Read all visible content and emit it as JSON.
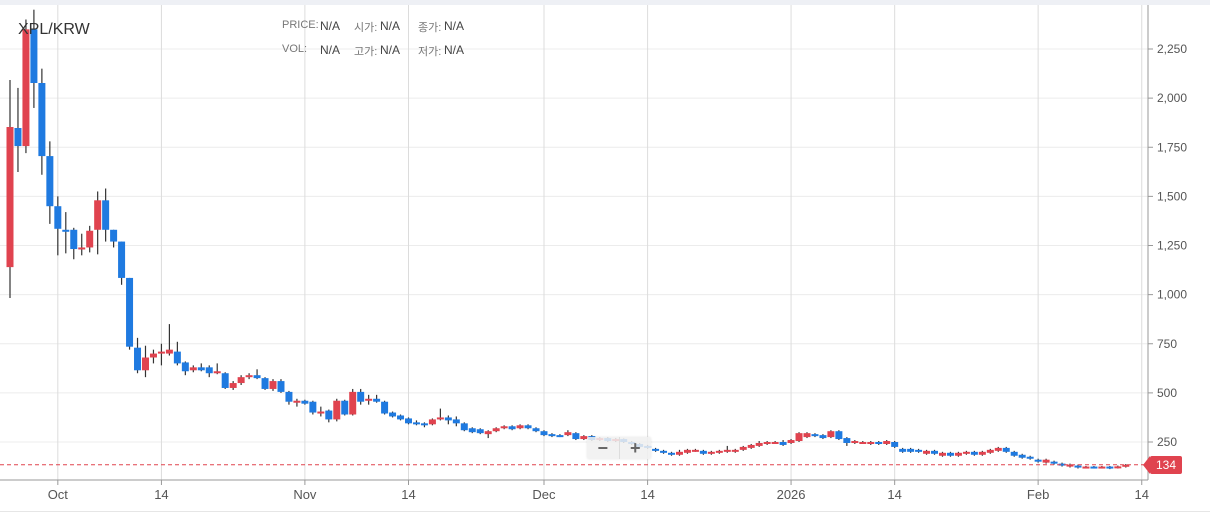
{
  "header": {
    "pair": "XPL/KRW",
    "info": [
      {
        "label": "PRICE:",
        "value": "N/A"
      },
      {
        "label": "시가:",
        "value": "N/A"
      },
      {
        "label": "종가:",
        "value": "N/A"
      },
      {
        "label": "VOL:",
        "value": "N/A"
      },
      {
        "label": "고가:",
        "value": "N/A"
      },
      {
        "label": "저가:",
        "value": "N/A"
      }
    ]
  },
  "zoom_controls": {
    "minus": "−",
    "plus": "+"
  },
  "current_price": "134",
  "colors": {
    "up": "#e0434f",
    "down": "#1f7ae0",
    "grid": "#ececec",
    "axis": "#999999"
  },
  "chart_data": {
    "type": "candlestick",
    "title": "XPL/KRW",
    "start_date": "2025-09-25",
    "interval": "1d",
    "ylim": [
      0,
      2450
    ],
    "yticks": [
      "250",
      "500",
      "750",
      "1,000",
      "1,250",
      "1,500",
      "1,750",
      "2,000",
      "2,250"
    ],
    "ytick_values": [
      250,
      500,
      750,
      1000,
      1250,
      1500,
      1750,
      2000,
      2250
    ],
    "xticks": [
      {
        "label": "Oct",
        "day_index": 6
      },
      {
        "label": "14",
        "day_index": 19
      },
      {
        "label": "Nov",
        "day_index": 37
      },
      {
        "label": "14",
        "day_index": 50
      },
      {
        "label": "Dec",
        "day_index": 67
      },
      {
        "label": "14",
        "day_index": 80
      },
      {
        "label": "2026",
        "day_index": 98
      },
      {
        "label": "14",
        "day_index": 111
      },
      {
        "label": "Feb",
        "day_index": 129
      },
      {
        "label": "14",
        "day_index": 142
      }
    ],
    "last_price": 134,
    "ohlc": [
      [
        1140,
        2092,
        983,
        1853
      ],
      [
        1848,
        2052,
        1624,
        1756
      ],
      [
        1756,
        2400,
        1720,
        2350
      ],
      [
        2350,
        2450,
        1950,
        2077
      ],
      [
        2077,
        2150,
        1610,
        1705
      ],
      [
        1705,
        1780,
        1360,
        1450
      ],
      [
        1450,
        1500,
        1200,
        1335
      ],
      [
        1330,
        1420,
        1210,
        1320
      ],
      [
        1330,
        1340,
        1180,
        1232
      ],
      [
        1230,
        1310,
        1200,
        1240
      ],
      [
        1240,
        1350,
        1215,
        1325
      ],
      [
        1330,
        1525,
        1205,
        1480
      ],
      [
        1480,
        1540,
        1270,
        1330
      ],
      [
        1330,
        1330,
        1240,
        1270
      ],
      [
        1270,
        1270,
        1050,
        1085
      ],
      [
        1085,
        1085,
        720,
        735
      ],
      [
        730,
        780,
        600,
        615
      ],
      [
        615,
        740,
        580,
        680
      ],
      [
        680,
        720,
        650,
        700
      ],
      [
        700,
        750,
        640,
        710
      ],
      [
        700,
        850,
        690,
        720
      ],
      [
        710,
        760,
        640,
        650
      ],
      [
        655,
        660,
        590,
        610
      ],
      [
        615,
        640,
        605,
        630
      ],
      [
        630,
        650,
        610,
        615
      ],
      [
        630,
        640,
        580,
        600
      ],
      [
        600,
        650,
        595,
        610
      ],
      [
        600,
        605,
        520,
        525
      ],
      [
        525,
        560,
        515,
        550
      ],
      [
        550,
        590,
        540,
        580
      ],
      [
        580,
        600,
        570,
        590
      ],
      [
        590,
        620,
        570,
        575
      ],
      [
        575,
        580,
        515,
        520
      ],
      [
        520,
        570,
        510,
        560
      ],
      [
        560,
        570,
        500,
        505
      ],
      [
        505,
        510,
        440,
        455
      ],
      [
        450,
        470,
        430,
        460
      ],
      [
        460,
        465,
        440,
        445
      ],
      [
        455,
        460,
        390,
        400
      ],
      [
        395,
        430,
        380,
        405
      ],
      [
        410,
        415,
        350,
        365
      ],
      [
        365,
        470,
        355,
        460
      ],
      [
        460,
        465,
        385,
        390
      ],
      [
        390,
        520,
        385,
        505
      ],
      [
        505,
        520,
        440,
        455
      ],
      [
        460,
        490,
        440,
        470
      ],
      [
        470,
        490,
        450,
        455
      ],
      [
        455,
        460,
        390,
        395
      ],
      [
        400,
        405,
        375,
        380
      ],
      [
        385,
        390,
        360,
        365
      ],
      [
        370,
        375,
        340,
        345
      ],
      [
        350,
        360,
        335,
        340
      ],
      [
        345,
        350,
        325,
        335
      ],
      [
        340,
        370,
        335,
        365
      ],
      [
        365,
        420,
        360,
        375
      ],
      [
        375,
        385,
        340,
        360
      ],
      [
        365,
        380,
        330,
        345
      ],
      [
        345,
        350,
        305,
        310
      ],
      [
        320,
        325,
        295,
        300
      ],
      [
        315,
        320,
        290,
        295
      ],
      [
        290,
        310,
        270,
        305
      ],
      [
        305,
        325,
        300,
        320
      ],
      [
        320,
        335,
        315,
        330
      ],
      [
        330,
        335,
        310,
        315
      ],
      [
        320,
        340,
        315,
        335
      ],
      [
        335,
        340,
        315,
        320
      ],
      [
        320,
        325,
        300,
        305
      ],
      [
        305,
        310,
        280,
        285
      ],
      [
        290,
        295,
        275,
        280
      ],
      [
        285,
        290,
        275,
        280
      ],
      [
        285,
        310,
        280,
        300
      ],
      [
        295,
        300,
        260,
        265
      ],
      [
        265,
        285,
        260,
        280
      ],
      [
        280,
        285,
        255,
        260
      ],
      [
        260,
        275,
        255,
        270
      ],
      [
        270,
        275,
        250,
        255
      ],
      [
        255,
        270,
        250,
        265
      ],
      [
        265,
        268,
        245,
        250
      ],
      [
        250,
        255,
        235,
        240
      ],
      [
        240,
        245,
        220,
        225
      ],
      [
        230,
        235,
        215,
        220
      ],
      [
        215,
        220,
        200,
        205
      ],
      [
        205,
        210,
        190,
        195
      ],
      [
        195,
        200,
        180,
        185
      ],
      [
        185,
        210,
        180,
        200
      ],
      [
        195,
        215,
        190,
        210
      ],
      [
        205,
        215,
        200,
        210
      ],
      [
        205,
        210,
        185,
        190
      ],
      [
        190,
        205,
        185,
        200
      ],
      [
        195,
        210,
        190,
        205
      ],
      [
        200,
        230,
        195,
        210
      ],
      [
        200,
        215,
        195,
        210
      ],
      [
        210,
        230,
        205,
        225
      ],
      [
        220,
        240,
        215,
        235
      ],
      [
        230,
        255,
        225,
        245
      ],
      [
        240,
        255,
        235,
        250
      ],
      [
        245,
        255,
        240,
        250
      ],
      [
        250,
        260,
        230,
        235
      ],
      [
        245,
        265,
        240,
        260
      ],
      [
        255,
        300,
        250,
        295
      ],
      [
        275,
        300,
        270,
        295
      ],
      [
        290,
        295,
        275,
        280
      ],
      [
        285,
        290,
        265,
        270
      ],
      [
        275,
        310,
        270,
        305
      ],
      [
        305,
        310,
        260,
        265
      ],
      [
        270,
        275,
        230,
        245
      ],
      [
        245,
        260,
        240,
        255
      ],
      [
        245,
        255,
        240,
        250
      ],
      [
        240,
        255,
        235,
        250
      ],
      [
        250,
        255,
        235,
        240
      ],
      [
        240,
        260,
        235,
        255
      ],
      [
        250,
        255,
        220,
        225
      ],
      [
        215,
        220,
        195,
        200
      ],
      [
        215,
        220,
        195,
        200
      ],
      [
        210,
        215,
        195,
        200
      ],
      [
        190,
        210,
        185,
        205
      ],
      [
        205,
        210,
        185,
        190
      ],
      [
        180,
        200,
        175,
        195
      ],
      [
        195,
        200,
        175,
        180
      ],
      [
        180,
        200,
        175,
        195
      ],
      [
        190,
        205,
        185,
        200
      ],
      [
        200,
        205,
        180,
        185
      ],
      [
        185,
        205,
        180,
        200
      ],
      [
        195,
        215,
        190,
        210
      ],
      [
        205,
        225,
        200,
        220
      ],
      [
        220,
        225,
        195,
        200
      ],
      [
        200,
        205,
        175,
        180
      ],
      [
        185,
        190,
        165,
        170
      ],
      [
        175,
        180,
        160,
        165
      ],
      [
        160,
        165,
        145,
        150
      ],
      [
        145,
        165,
        140,
        160
      ],
      [
        150,
        155,
        135,
        140
      ],
      [
        140,
        145,
        125,
        130
      ],
      [
        125,
        140,
        120,
        135
      ],
      [
        130,
        135,
        115,
        120
      ],
      [
        120,
        128,
        118,
        125
      ],
      [
        125,
        128,
        115,
        120
      ],
      [
        120,
        128,
        115,
        125
      ],
      [
        125,
        128,
        112,
        118
      ],
      [
        120,
        130,
        115,
        126
      ],
      [
        125,
        138,
        120,
        134
      ]
    ]
  }
}
